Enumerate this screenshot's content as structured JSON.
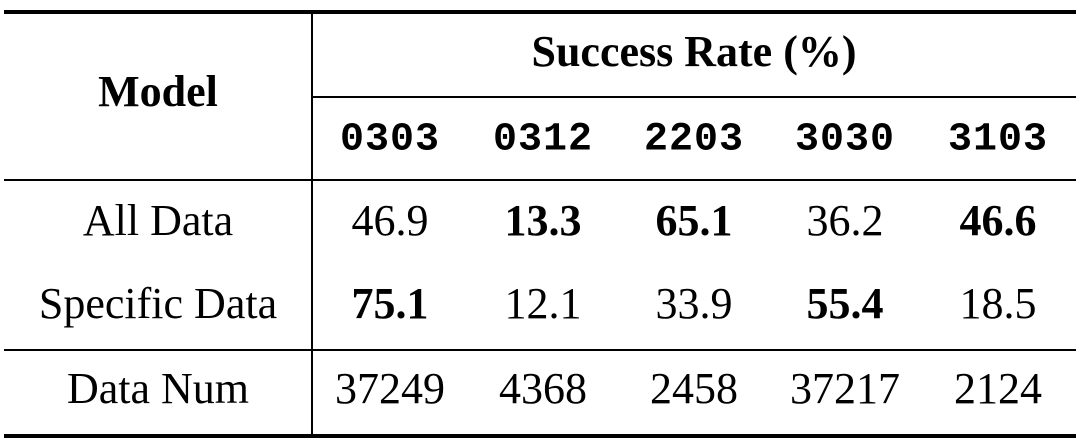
{
  "table": {
    "header": {
      "model": "Model",
      "group": "Success Rate (%)",
      "columns": [
        "0303",
        "0312",
        "2203",
        "3030",
        "3103"
      ]
    },
    "rows": [
      {
        "label": "All Data",
        "cells": [
          "46.9",
          "13.3",
          "65.1",
          "36.2",
          "46.6"
        ],
        "bold": [
          false,
          true,
          true,
          false,
          true
        ]
      },
      {
        "label": "Specific Data",
        "cells": [
          "75.1",
          "12.1",
          "33.9",
          "55.4",
          "18.5"
        ],
        "bold": [
          true,
          false,
          false,
          true,
          false
        ]
      },
      {
        "label": "Data Num",
        "cells": [
          "37249",
          "4368",
          "2458",
          "37217",
          "2124"
        ],
        "bold": [
          false,
          false,
          false,
          false,
          false
        ]
      }
    ]
  }
}
